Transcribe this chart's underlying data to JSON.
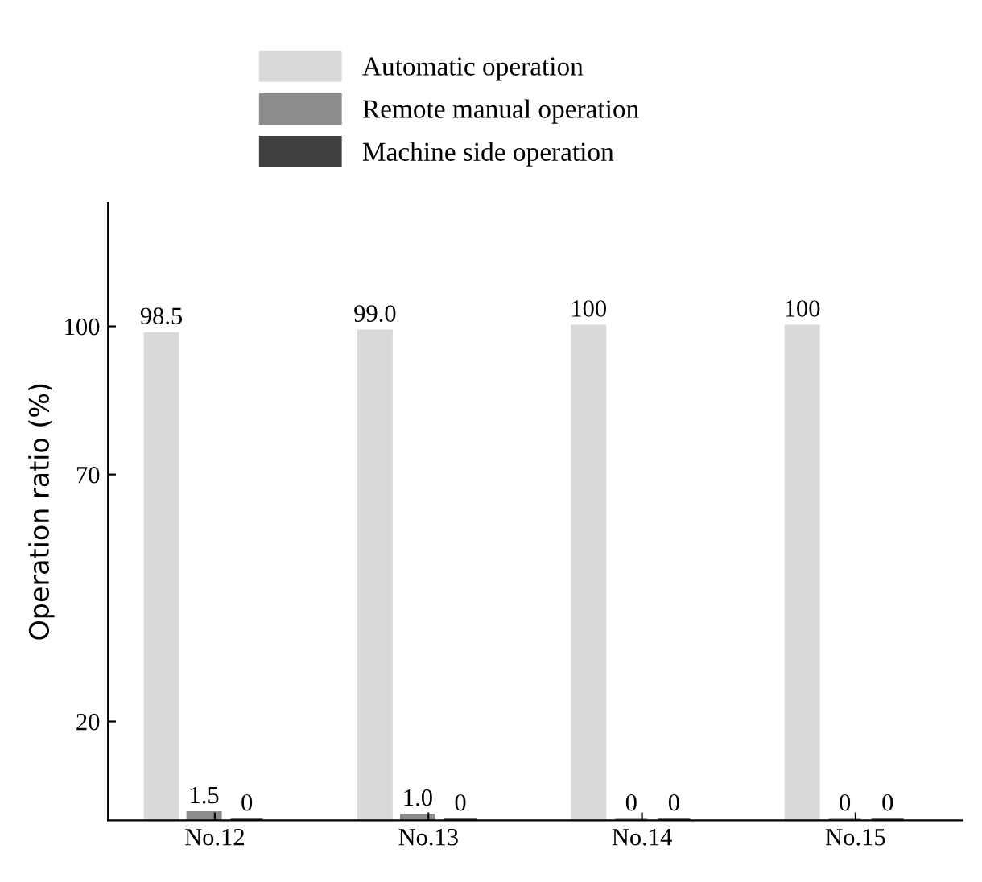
{
  "chart_data": {
    "type": "bar",
    "ylabel": "Operation ratio (%)",
    "categories": [
      "No.12",
      "No.13",
      "No.14",
      "No.15"
    ],
    "series": [
      {
        "name": "Automatic operation",
        "color": "#d9d9d9",
        "values": [
          98.5,
          99.0,
          100,
          100
        ],
        "value_labels": [
          "98.5",
          "99.0",
          "100",
          "100"
        ]
      },
      {
        "name": "Remote manual operation",
        "color": "#8c8c8c",
        "values": [
          1.5,
          1.0,
          0,
          0
        ],
        "value_labels": [
          "1.5",
          "1.0",
          "0",
          "0"
        ]
      },
      {
        "name": "Machine side operation",
        "color": "#404040",
        "values": [
          0,
          0,
          0,
          0
        ],
        "value_labels": [
          "0",
          "0",
          "0",
          "0"
        ]
      }
    ],
    "ylim": [
      0,
      125
    ],
    "yticks": [
      20,
      70,
      100
    ],
    "grid": false,
    "legend": "top"
  }
}
